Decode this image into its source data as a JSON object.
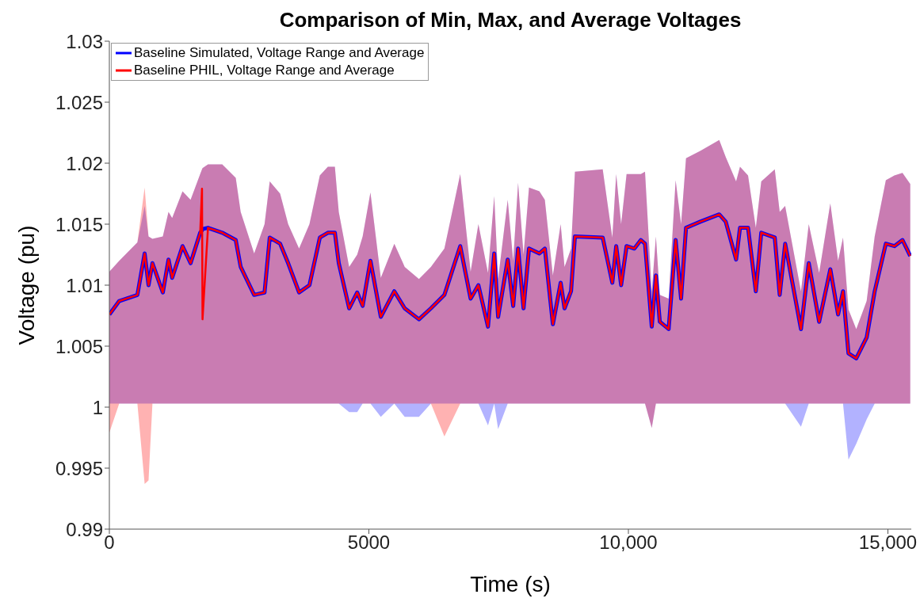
{
  "chart_data": {
    "type": "line",
    "title": "Comparison of Min, Max, and Average Voltages",
    "xlabel": "Time (s)",
    "ylabel": "Voltage (pu)",
    "xlim": [
      0,
      15450
    ],
    "xticks": [
      0,
      5000,
      {
        "value": 10000,
        "label": "10,000"
      },
      {
        "value": 15000,
        "label": "15,000"
      }
    ],
    "ylim": [
      0.99,
      1.03
    ],
    "yticks": [
      0.99,
      0.995,
      1,
      1.005,
      1.01,
      1.015,
      1.02,
      1.025,
      1.03
    ],
    "grid": false,
    "legend": "top left",
    "marker": "none",
    "line_style": "solid",
    "x": [
      0,
      190,
      540,
      680,
      755,
      830,
      1030,
      1140,
      1210,
      1410,
      1565,
      1750,
      1785,
      1795,
      1900,
      2175,
      2435,
      2530,
      2790,
      2990,
      3090,
      3290,
      3445,
      3655,
      3855,
      4055,
      4210,
      4345,
      4420,
      4620,
      4775,
      4880,
      5030,
      5230,
      5490,
      5690,
      5965,
      6195,
      6455,
      6760,
      6960,
      7110,
      7295,
      7415,
      7490,
      7675,
      7780,
      7875,
      7980,
      8085,
      8285,
      8390,
      8545,
      8695,
      8770,
      8895,
      8970,
      9505,
      9690,
      9765,
      9860,
      9965,
      10115,
      10240,
      10320,
      10450,
      10530,
      10605,
      10775,
      10910,
      11015,
      11110,
      11385,
      11750,
      11875,
      12075,
      12150,
      12305,
      12455,
      12560,
      12820,
      12915,
      13020,
      13325,
      13475,
      13675,
      13890,
      14040,
      14135,
      14240,
      14390,
      14590,
      14745,
      14960,
      15125,
      15280,
      15430
    ],
    "series": [
      {
        "name": "Baseline Simulated, Voltage Range and Average",
        "color": "#0000ff",
        "values": [
          1.0076,
          1.0087,
          1.0092,
          1.0126,
          1.01,
          1.0118,
          1.0094,
          1.0121,
          1.0106,
          1.0132,
          1.0118,
          1.0143,
          1.0145,
          1.0146,
          1.0147,
          1.0143,
          1.0137,
          1.0115,
          1.0092,
          1.0094,
          1.0139,
          1.0134,
          1.0118,
          1.0094,
          1.01,
          1.0139,
          1.0143,
          1.0143,
          1.0118,
          1.0081,
          1.0094,
          1.0083,
          1.012,
          1.0074,
          1.0095,
          1.0081,
          1.0072,
          1.0081,
          1.0092,
          1.0132,
          1.0089,
          1.01,
          1.0066,
          1.0126,
          1.0074,
          1.0121,
          1.0083,
          1.013,
          1.0081,
          1.013,
          1.0126,
          1.013,
          1.0068,
          1.0102,
          1.0081,
          1.0095,
          1.014,
          1.0139,
          1.0102,
          1.0132,
          1.01,
          1.0132,
          1.013,
          1.0137,
          1.0134,
          1.0066,
          1.0108,
          1.007,
          1.0064,
          1.0137,
          1.0089,
          1.0147,
          1.0152,
          1.0158,
          1.0152,
          1.0121,
          1.0147,
          1.0147,
          1.0095,
          1.0143,
          1.0139,
          1.0092,
          1.0134,
          1.0064,
          1.0118,
          1.007,
          1.0113,
          1.0076,
          1.0095,
          1.0044,
          1.004,
          1.0057,
          1.0095,
          1.0134,
          1.0132,
          1.0137,
          1.0124
        ],
        "upper": [
          1.0111,
          1.012,
          1.0135,
          1.0165,
          1.014,
          1.0138,
          1.014,
          1.016,
          1.0155,
          1.0177,
          1.017,
          1.0191,
          1.0195,
          1.0196,
          1.0199,
          1.0199,
          1.0188,
          1.016,
          1.0126,
          1.015,
          1.0185,
          1.0175,
          1.015,
          1.013,
          1.015,
          1.019,
          1.0197,
          1.0197,
          1.016,
          1.0115,
          1.0125,
          1.014,
          1.0176,
          1.0106,
          1.0134,
          1.0115,
          1.0105,
          1.0115,
          1.013,
          1.0191,
          1.0111,
          1.015,
          1.011,
          1.0173,
          1.0105,
          1.017,
          1.012,
          1.0184,
          1.0125,
          1.018,
          1.0177,
          1.017,
          1.0108,
          1.015,
          1.0115,
          1.013,
          1.0193,
          1.0195,
          1.0139,
          1.0191,
          1.015,
          1.0191,
          1.0191,
          1.0191,
          1.0193,
          1.0095,
          1.014,
          1.0092,
          1.0089,
          1.0186,
          1.015,
          1.0204,
          1.021,
          1.0219,
          1.0205,
          1.0185,
          1.0197,
          1.019,
          1.0147,
          1.0185,
          1.0195,
          1.016,
          1.0165,
          1.0095,
          1.015,
          1.011,
          1.0167,
          1.012,
          1.0139,
          1.008,
          1.0064,
          1.0087,
          1.014,
          1.0186,
          1.019,
          1.0192,
          1.0183
        ],
        "lower": [
          1.0003,
          1.0003,
          1.0003,
          1.0003,
          1.0003,
          1.0003,
          1.0003,
          1.0003,
          1.0003,
          1.0003,
          1.0003,
          1.0003,
          1.0003,
          1.0003,
          1.0003,
          1.0003,
          1.0003,
          1.0003,
          1.0003,
          1.0003,
          1.0003,
          1.0003,
          1.0003,
          1.0003,
          1.0003,
          1.0003,
          1.0003,
          1.0003,
          1.0003,
          0.9996,
          0.9996,
          1.0003,
          1.0003,
          0.9992,
          1.0003,
          0.9992,
          0.9992,
          1.0003,
          1.0003,
          1.0003,
          1.0003,
          1.0003,
          0.9985,
          1.0003,
          0.9982,
          1.0003,
          1.0003,
          1.0003,
          1.0003,
          1.0003,
          1.0003,
          1.0003,
          1.0003,
          1.0003,
          1.0003,
          1.0003,
          1.0003,
          1.0003,
          1.0003,
          1.0003,
          1.0003,
          1.0003,
          1.0003,
          1.0003,
          1.0003,
          0.9983,
          1.0003,
          1.0003,
          1.0003,
          1.0003,
          1.0003,
          1.0003,
          1.0003,
          1.0003,
          1.0003,
          1.0003,
          1.0003,
          1.0003,
          1.0003,
          1.0003,
          1.0003,
          1.0003,
          1.0003,
          0.9984,
          1.0003,
          1.0003,
          1.0003,
          1.0003,
          1.0003,
          0.9957,
          0.997,
          0.999,
          1.0003,
          1.0003,
          1.0003,
          1.0003,
          1.0003
        ]
      },
      {
        "name": "Baseline PHIL, Voltage Range and Average",
        "color": "#ff0000",
        "values": [
          1.0076,
          1.0087,
          1.0092,
          1.0126,
          1.01,
          1.0118,
          1.0094,
          1.0121,
          1.0106,
          1.0132,
          1.0118,
          1.0143,
          1.0179,
          1.0072,
          1.0147,
          1.0143,
          1.0137,
          1.0115,
          1.0092,
          1.0094,
          1.0139,
          1.0134,
          1.0118,
          1.0094,
          1.01,
          1.0139,
          1.0143,
          1.0143,
          1.0118,
          1.0081,
          1.0094,
          1.0083,
          1.012,
          1.0074,
          1.0095,
          1.0081,
          1.0072,
          1.0081,
          1.0092,
          1.0132,
          1.0089,
          1.01,
          1.0066,
          1.0126,
          1.0074,
          1.0121,
          1.0083,
          1.013,
          1.0081,
          1.013,
          1.0126,
          1.013,
          1.0068,
          1.0102,
          1.0081,
          1.0095,
          1.014,
          1.0139,
          1.0102,
          1.0132,
          1.01,
          1.0132,
          1.013,
          1.0137,
          1.0134,
          1.0066,
          1.0108,
          1.007,
          1.0064,
          1.0137,
          1.0089,
          1.0147,
          1.0152,
          1.0158,
          1.0152,
          1.0121,
          1.0147,
          1.0147,
          1.0095,
          1.0143,
          1.0139,
          1.0092,
          1.0134,
          1.0064,
          1.0118,
          1.007,
          1.0113,
          1.0076,
          1.0095,
          1.0044,
          1.004,
          1.0057,
          1.0095,
          1.0134,
          1.0132,
          1.0137,
          1.0124
        ],
        "upper": [
          1.0111,
          1.012,
          1.0135,
          1.018,
          1.014,
          1.0138,
          1.014,
          1.016,
          1.0155,
          1.0177,
          1.017,
          1.0191,
          1.0195,
          1.0196,
          1.0199,
          1.0199,
          1.0188,
          1.016,
          1.0126,
          1.015,
          1.0185,
          1.0175,
          1.015,
          1.013,
          1.015,
          1.019,
          1.0197,
          1.0197,
          1.016,
          1.0115,
          1.0125,
          1.014,
          1.0176,
          1.0106,
          1.0134,
          1.0115,
          1.0105,
          1.0115,
          1.013,
          1.0191,
          1.0111,
          1.015,
          1.011,
          1.0173,
          1.0105,
          1.017,
          1.012,
          1.0184,
          1.0125,
          1.018,
          1.0177,
          1.017,
          1.0108,
          1.015,
          1.0115,
          1.013,
          1.0193,
          1.0195,
          1.0139,
          1.0191,
          1.015,
          1.0191,
          1.0191,
          1.0191,
          1.0193,
          1.0095,
          1.014,
          1.0092,
          1.0089,
          1.0186,
          1.015,
          1.0204,
          1.021,
          1.0219,
          1.0205,
          1.0185,
          1.0197,
          1.019,
          1.0147,
          1.0185,
          1.0195,
          1.016,
          1.0165,
          1.0095,
          1.015,
          1.011,
          1.0167,
          1.012,
          1.0139,
          1.008,
          1.0064,
          1.0087,
          1.014,
          1.0186,
          1.019,
          1.0192,
          1.0183
        ],
        "lower": [
          0.9979,
          1.0003,
          1.0003,
          0.9937,
          0.994,
          1.0003,
          1.0003,
          1.0003,
          1.0003,
          1.0003,
          1.0003,
          1.0003,
          1.0003,
          1.0003,
          1.0003,
          1.0003,
          1.0003,
          1.0003,
          1.0003,
          1.0003,
          1.0003,
          1.0003,
          1.0003,
          1.0003,
          1.0003,
          1.0003,
          1.0003,
          1.0003,
          1.0003,
          1.0003,
          1.0003,
          1.0003,
          1.0003,
          1.0003,
          1.0003,
          1.0003,
          1.0003,
          1.0003,
          0.9976,
          1.0003,
          1.0003,
          1.0003,
          1.0003,
          1.0003,
          1.0003,
          1.0003,
          1.0003,
          1.0003,
          1.0003,
          1.0003,
          1.0003,
          1.0003,
          1.0003,
          1.0003,
          1.0003,
          1.0003,
          1.0003,
          1.0003,
          1.0003,
          1.0003,
          1.0003,
          1.0003,
          1.0003,
          1.0003,
          1.0003,
          0.9983,
          1.0003,
          1.0003,
          1.0003,
          1.0003,
          1.0003,
          1.0003,
          1.0003,
          1.0003,
          1.0003,
          1.0003,
          1.0003,
          1.0003,
          1.0003,
          1.0003,
          1.0003,
          1.0003,
          1.0003,
          1.0003,
          1.0003,
          1.0003,
          1.0003,
          1.0003,
          1.0003,
          1.0003,
          1.0003,
          1.0003,
          1.0003,
          1.0003,
          1.0003,
          1.0003,
          1.0003
        ]
      }
    ]
  }
}
